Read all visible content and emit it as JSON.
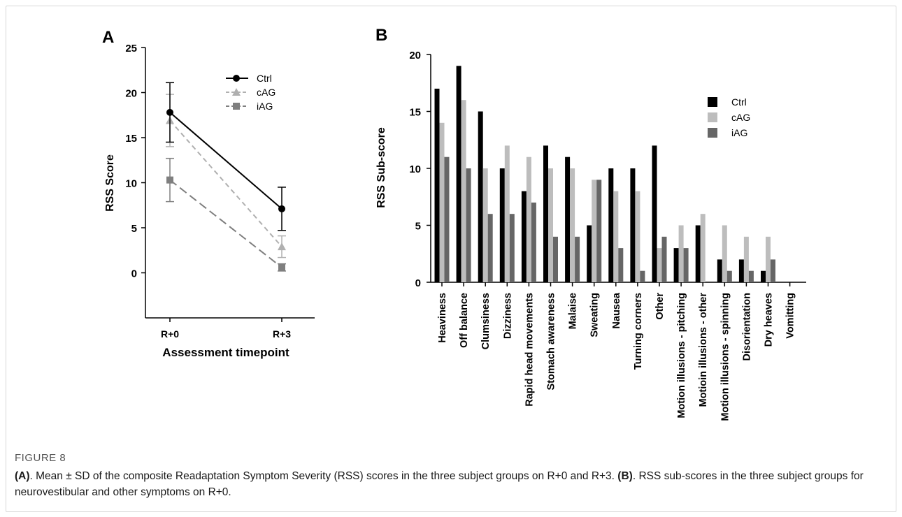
{
  "chart_data": [
    {
      "type": "line",
      "panel_label": "A",
      "xlabel": "Assessment timepoint",
      "ylabel": "RSS Score",
      "categories": [
        "R+0",
        "R+3"
      ],
      "ylim": [
        -5,
        25
      ],
      "yticks": [
        "0",
        "5",
        "10",
        "15",
        "20",
        "25"
      ],
      "grid": false,
      "legend": "top-right",
      "series": [
        {
          "name": "Ctrl",
          "values": [
            17.8,
            7.1
          ],
          "sd": [
            3.3,
            2.4
          ],
          "color": "#000000",
          "marker": "circle",
          "dash": "solid"
        },
        {
          "name": "cAG",
          "values": [
            16.9,
            2.9
          ],
          "sd": [
            2.9,
            1.2
          ],
          "color": "#b0b0b0",
          "marker": "triangle",
          "dash": "dashed"
        },
        {
          "name": "iAG",
          "values": [
            10.3,
            0.6
          ],
          "sd": [
            2.4,
            0.4
          ],
          "color": "#7f7f7f",
          "marker": "square",
          "dash": "long-dash"
        }
      ]
    },
    {
      "type": "bar",
      "panel_label": "B",
      "xlabel": "",
      "ylabel": "RSS Sub-score",
      "ylim": [
        0,
        20
      ],
      "yticks": [
        "0",
        "5",
        "10",
        "15",
        "20"
      ],
      "grid": false,
      "legend": "top-right",
      "categories": [
        "Heaviness",
        "Off balance",
        "Clumsiness",
        "Dizziness",
        "Rapid head movements",
        "Stomach awareness",
        "Malaise",
        "Sweating",
        "Nausea",
        "Turning corners",
        "Other",
        "Motion illusions - pitching",
        "Motioin illusions - other",
        "Motion illusions - spinning",
        "Disorientation",
        "Dry heaves",
        "Vomitting"
      ],
      "series": [
        {
          "name": "Ctrl",
          "color": "#000000",
          "values": [
            17,
            19,
            15,
            10,
            8,
            12,
            11,
            5,
            10,
            10,
            12,
            3,
            5,
            2,
            2,
            1,
            0
          ]
        },
        {
          "name": "cAG",
          "color": "#bdbdbd",
          "values": [
            14,
            16,
            10,
            12,
            11,
            10,
            10,
            9,
            8,
            8,
            3,
            5,
            6,
            5,
            4,
            4,
            0
          ]
        },
        {
          "name": "iAG",
          "color": "#666666",
          "values": [
            11,
            10,
            6,
            6,
            7,
            4,
            4,
            9,
            3,
            1,
            4,
            3,
            0,
            1,
            1,
            2,
            0
          ]
        }
      ]
    }
  ],
  "caption": {
    "label": "FIGURE 8",
    "a_tag": "(A)",
    "a_text": ". Mean ± SD of the composite Readaptation Symptom Severity (RSS) scores in the three subject groups on R+0 and R+3. ",
    "b_tag": "(B)",
    "b_text": ". RSS sub-scores in the three subject groups for neurovestibular and other symptoms on R+0."
  }
}
